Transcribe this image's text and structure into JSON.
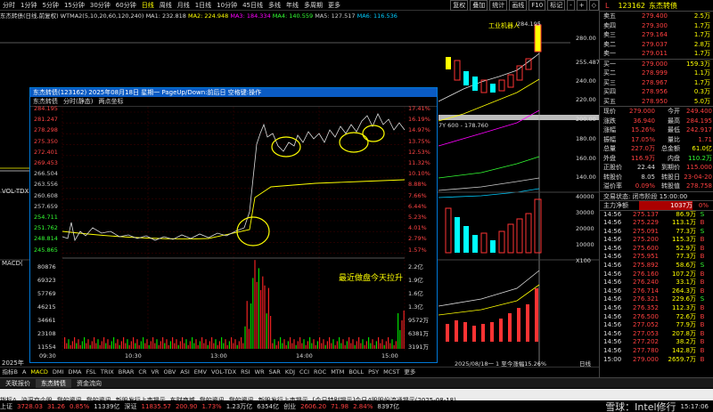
{
  "period_bar": {
    "items": [
      "分时",
      "1分钟",
      "5分钟",
      "15分钟",
      "30分钟",
      "60分钟",
      "日线",
      "周线",
      "月线",
      "1日线",
      "10分钟",
      "45日线",
      "多线",
      "年线",
      "多周期",
      "更多"
    ],
    "active_index": 6,
    "buttons": [
      "复权",
      "叠加",
      "统计",
      "画线",
      "F10",
      "标记",
      "-",
      "+",
      "◇"
    ]
  },
  "ma_line": {
    "title": "东杰转债(日线,前复权)",
    "indicator": "WTMA2(5,10,20,60,120,240)",
    "ma1": "MA1: 232.818",
    "ma2": "MA2: 224.948",
    "ma3": "MA3: 184.334",
    "ma4": "MA4: 140.559",
    "ma5": "MA5: 127.517",
    "ma6": "MA6: 116.536"
  },
  "main_chart": {
    "price_labels": [
      "280.00",
      "255.487",
      "240.00",
      "220.00",
      "200.00",
      "180.00",
      "160.00",
      "140.00",
      "120.00",
      "100.00"
    ],
    "annotation_top": "工业机器人",
    "top_price": "284.195",
    "overlay_text": "7Y 600 - 178.760",
    "vol_label": "VOL-TDX",
    "macd_label": "MACD(",
    "vol_scale": [
      "40000",
      "30000",
      "20000",
      "10000",
      "X100"
    ],
    "year_label": "2025年",
    "date_label": "2025/08/18一 1 至今涨幅15.26%",
    "day_label": "日线"
  },
  "popup": {
    "title": "东杰转债(123162) 2025年08月18日 星期一 PageUp/Down:前后日 空格键:操作",
    "tab_name": "东杰转债",
    "tab_mode": "分时(静态)",
    "tab_both": "两点坐标",
    "left_prices": [
      "284.195",
      "281.247",
      "278.298",
      "275.350",
      "272.401",
      "269.453",
      "266.504",
      "263.556",
      "260.608",
      "257.659",
      "254.711",
      "251.762",
      "248.814",
      "245.865"
    ],
    "right_pcts": [
      "17.41%",
      "16.19%",
      "14.97%",
      "13.75%",
      "12.53%",
      "11.32%",
      "10.10%",
      "8.88%",
      "7.66%",
      "6.44%",
      "5.23%",
      "4.01%",
      "2.79%",
      "1.57%"
    ],
    "vol_left": [
      "80876",
      "69323",
      "57769",
      "46215",
      "34661",
      "23108",
      "11554"
    ],
    "vol_right": [
      "2.2亿",
      "1.9亿",
      "1.6亿",
      "1.3亿",
      "9572万",
      "6381万",
      "3191万"
    ],
    "time_labels": [
      "09:30",
      "10:30",
      "13:00",
      "14:00",
      "15:00"
    ],
    "annotation": "最近做盘今天拉升"
  },
  "right_panel": {
    "code": "123162",
    "name": "东杰转债",
    "sell": [
      {
        "label": "卖五",
        "price": "279.400",
        "vol": "2.5万"
      },
      {
        "label": "卖四",
        "price": "279.300",
        "vol": "1.7万"
      },
      {
        "label": "卖三",
        "price": "279.164",
        "vol": "1.7万"
      },
      {
        "label": "卖二",
        "price": "279.037",
        "vol": "2.8万"
      },
      {
        "label": "卖一",
        "price": "279.011",
        "vol": "1.7万"
      }
    ],
    "buy": [
      {
        "label": "买一",
        "price": "279.000",
        "vol": "159.3万"
      },
      {
        "label": "买二",
        "price": "278.999",
        "vol": "1.1万"
      },
      {
        "label": "买三",
        "price": "278.967",
        "vol": "1.7万"
      },
      {
        "label": "买四",
        "price": "278.956",
        "vol": "0.3万"
      },
      {
        "label": "买五",
        "price": "278.950",
        "vol": "5.0万"
      }
    ],
    "stats": [
      {
        "k1": "现价",
        "v1": "279.000",
        "k2": "今开",
        "v2": "249.400"
      },
      {
        "k1": "涨跌",
        "v1": "36.940",
        "k2": "最高",
        "v2": "284.195"
      },
      {
        "k1": "涨幅",
        "v1": "15.26%",
        "k2": "最低",
        "v2": "242.917"
      },
      {
        "k1": "振幅",
        "v1": "17.05%",
        "k2": "量比",
        "v2": "1.71"
      },
      {
        "k1": "总量",
        "v1": "227.0万",
        "k2": "总金额",
        "v2": "61.0亿"
      },
      {
        "k1": "外盘",
        "v1": "116.9万",
        "k2": "内盘",
        "v2": "110.2万"
      },
      {
        "k1": "正股价",
        "v1": "22.44",
        "k2": "到期价",
        "v2": "115.000"
      },
      {
        "k1": "转股价",
        "v1": "8.05",
        "k2": "转股日",
        "v2": "23-04-20"
      },
      {
        "k1": "溢价率",
        "v1": "0.09%",
        "k2": "转股值",
        "v2": "278.758"
      }
    ],
    "trade_status": "交易状态: 闭市阶段 15:00:00",
    "main_net": "主力净额",
    "main_net_val": "1037万",
    "main_net_pct": "0%",
    "ticks": [
      {
        "t": "14:56",
        "p": "275.137",
        "v": "86.9万",
        "d": "S"
      },
      {
        "t": "14:56",
        "p": "275.229",
        "v": "113.1万",
        "d": "B"
      },
      {
        "t": "14:56",
        "p": "275.091",
        "v": "77.3万",
        "d": "S"
      },
      {
        "t": "14:56",
        "p": "275.200",
        "v": "115.3万",
        "d": "B"
      },
      {
        "t": "14:56",
        "p": "275.600",
        "v": "52.9万",
        "d": "B"
      },
      {
        "t": "14:56",
        "p": "275.951",
        "v": "77.3万",
        "d": "B"
      },
      {
        "t": "14:56",
        "p": "275.892",
        "v": "58.6万",
        "d": "S"
      },
      {
        "t": "14:56",
        "p": "276.160",
        "v": "107.2万",
        "d": "B"
      },
      {
        "t": "14:56",
        "p": "276.240",
        "v": "33.1万",
        "d": "B"
      },
      {
        "t": "14:56",
        "p": "276.714",
        "v": "264.3万",
        "d": "B"
      },
      {
        "t": "14:56",
        "p": "276.321",
        "v": "229.6万",
        "d": "S"
      },
      {
        "t": "14:56",
        "p": "276.352",
        "v": "112.3万",
        "d": "B"
      },
      {
        "t": "14:56",
        "p": "276.500",
        "v": "72.6万",
        "d": "B"
      },
      {
        "t": "14:56",
        "p": "277.052",
        "v": "77.9万",
        "d": "B"
      },
      {
        "t": "14:56",
        "p": "277.053",
        "v": "207.8万",
        "d": "B"
      },
      {
        "t": "14:56",
        "p": "277.202",
        "v": "38.2万",
        "d": "B"
      },
      {
        "t": "14:56",
        "p": "277.780",
        "v": "142.8万",
        "d": "B"
      },
      {
        "t": "15:00",
        "p": "279.000",
        "v": "2659.7万",
        "d": "B"
      }
    ]
  },
  "indicator_tabs": [
    "指标B",
    "A",
    "MACD",
    "DMI",
    "DMA",
    "FSL",
    "TRIX",
    "BRAR",
    "CR",
    "VR",
    "OBV",
    "ASI",
    "EMV",
    "VOL-TDX",
    "RSI",
    "WR",
    "SAR",
    "KDJ",
    "CCI",
    "ROC",
    "MTM",
    "BOLL",
    "PSY",
    "MCST",
    "更多"
  ],
  "indicator_active": 2,
  "bottom_tabs": [
    "关联报价",
    "东杰转债",
    "资金流向"
  ],
  "status_bar": {
    "items": [
      "指标A",
      "沪深京个股",
      "我的资讯",
      "我的资讯",
      "新股发行上市提示",
      "东财商城",
      "我的资讯",
      "我的资讯",
      "新股发行上市提示",
      "[今日特别提示]今日4股股份流通提示(2025-08-18)"
    ],
    "index_label": "上证",
    "index_val": "3728.03",
    "index_chg": "31.26",
    "index_pct": "0.85%",
    "index_amt": "11339亿",
    "sz_label": "深证",
    "sz_val": "11835.57",
    "sz_chg": "200.90",
    "sz_pct": "1.73%",
    "sz_amt": "1.23万亿",
    "b_val": "6354亿",
    "c_label": "创业",
    "c_val": "2606.20",
    "c_chg": "71.98",
    "c_pct": "2.84%",
    "c_amt": "8397亿",
    "clock": "15:17:06",
    "watermark": "雪球：Intel修行"
  }
}
